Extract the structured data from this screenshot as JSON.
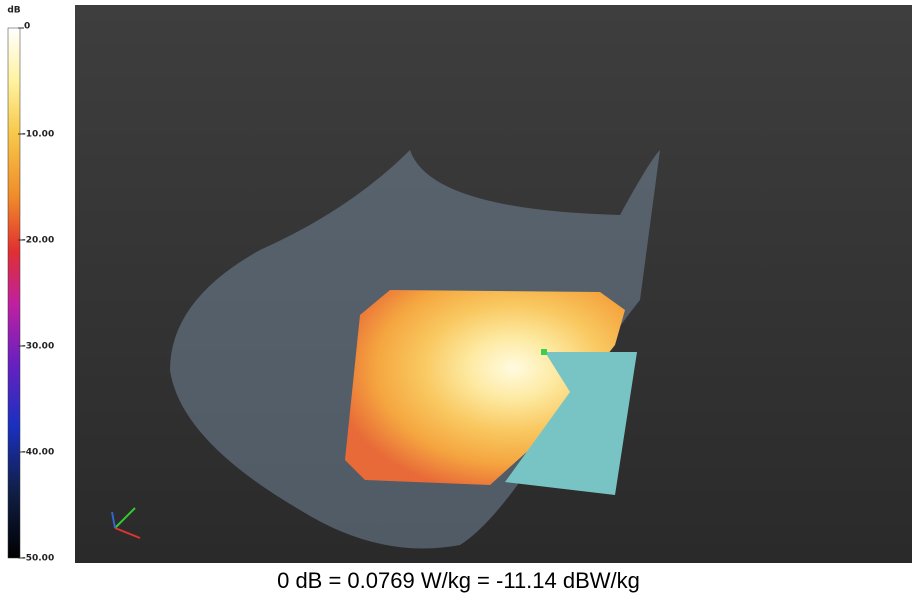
{
  "colorbar": {
    "unit": "dB",
    "ticks": [
      "0",
      "-10.00",
      "-20.00",
      "-30.00",
      "-40.00",
      "-50.00"
    ]
  },
  "caption": "0 dB = 0.0769 W/kg = -11.14 dBW/kg"
}
